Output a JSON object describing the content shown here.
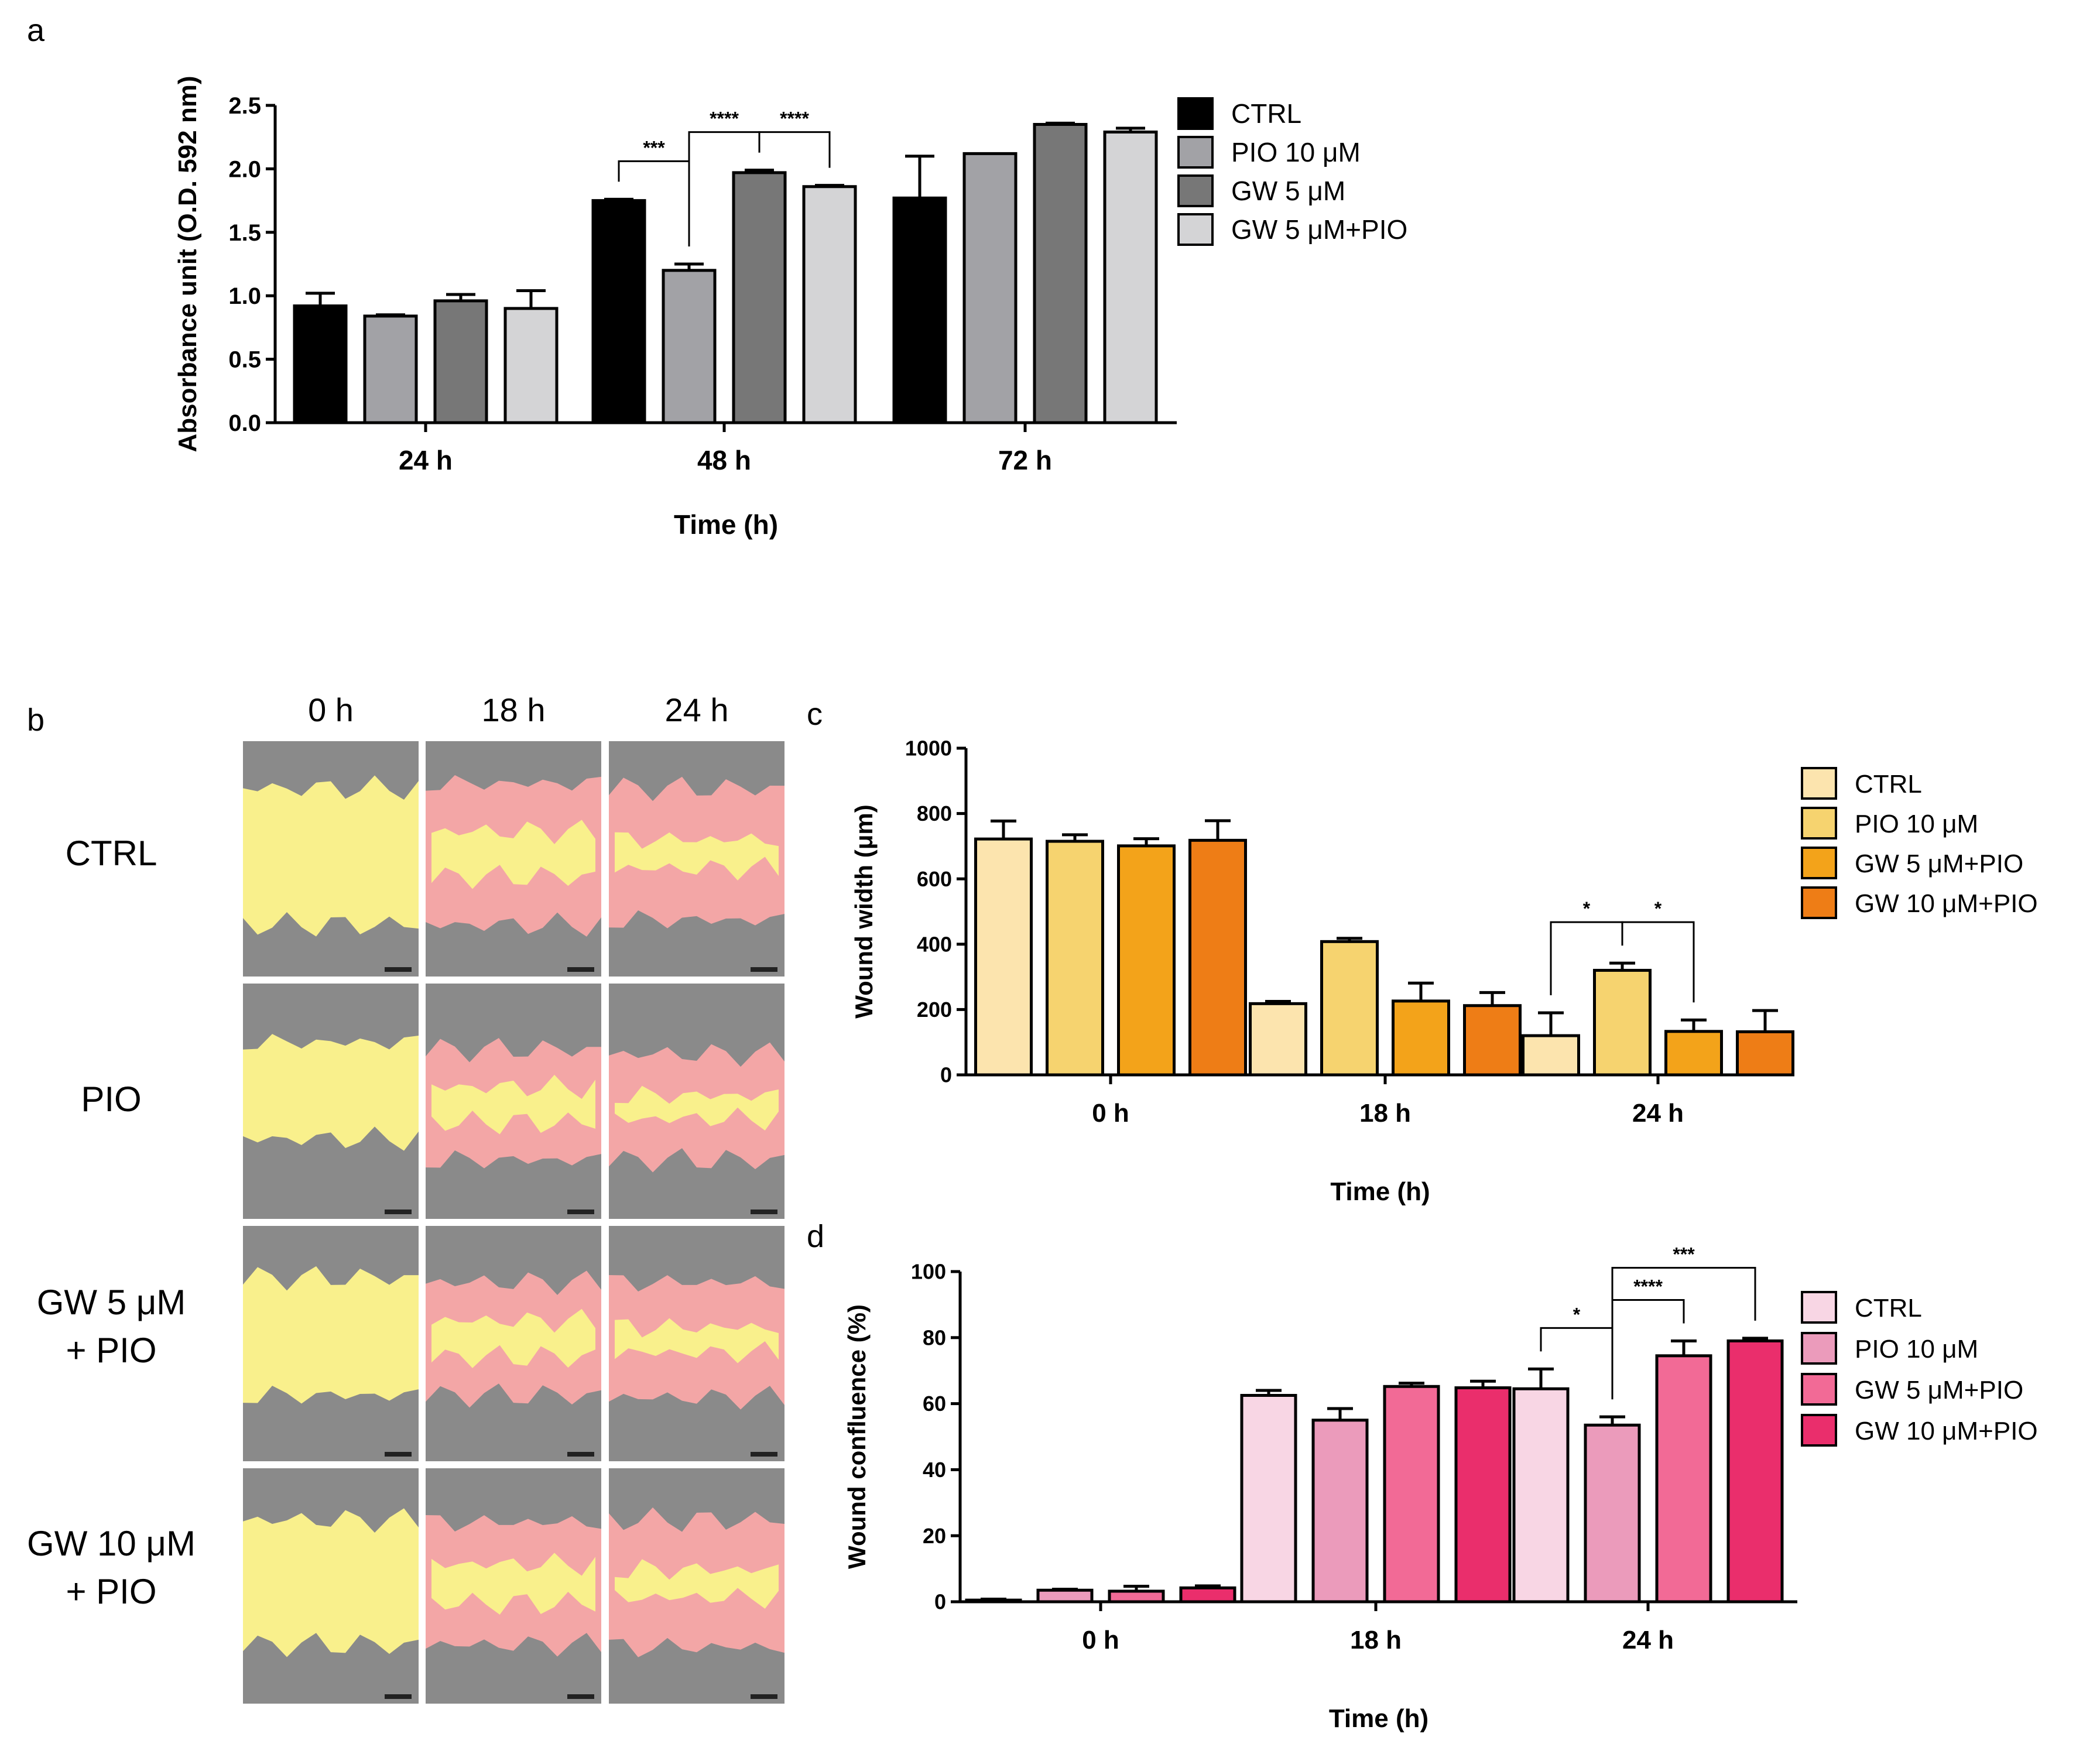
{
  "panel_labels": {
    "a": "a",
    "b": "b",
    "c": "c",
    "d": "d"
  },
  "chart_data": [
    {
      "id": "a",
      "type": "bar",
      "title": "",
      "xlabel": "Time (h)",
      "ylabel": "Absorbance unit (O.D. 592 nm)",
      "ylim": [
        0,
        2.5
      ],
      "yticks": [
        "0.0",
        "0.5",
        "1.0",
        "1.5",
        "2.0",
        "2.5"
      ],
      "categories": [
        "24 h",
        "48 h",
        "72 h"
      ],
      "series": [
        {
          "name": "CTRL",
          "color": "#000000",
          "values": [
            0.92,
            1.75,
            1.77
          ],
          "errors": [
            0.1,
            0.01,
            0.33
          ]
        },
        {
          "name": "PIO 10 μM",
          "color": "#a2a2a6",
          "values": [
            0.84,
            1.2,
            2.12
          ],
          "errors": [
            0.01,
            0.05,
            0.0
          ]
        },
        {
          "name": "GW 5 μM",
          "color": "#777777",
          "values": [
            0.96,
            1.97,
            2.35
          ],
          "errors": [
            0.05,
            0.02,
            0.01
          ]
        },
        {
          "name": "GW 5 μM+PIO",
          "color": "#d4d4d6",
          "values": [
            0.9,
            1.86,
            2.29
          ],
          "errors": [
            0.14,
            0.01,
            0.03
          ]
        }
      ],
      "legend": [
        "CTRL",
        "PIO 10 μM",
        "GW 5 μM",
        "GW 5 μM+PIO"
      ],
      "significance": [
        {
          "label": "***",
          "from": [
            1,
            0
          ],
          "to": [
            1,
            1
          ]
        },
        {
          "label": "****",
          "from": [
            1,
            1
          ],
          "to": [
            1,
            2
          ]
        },
        {
          "label": "****",
          "from": [
            1,
            2
          ],
          "to": [
            1,
            3
          ]
        }
      ]
    },
    {
      "id": "c",
      "type": "bar",
      "title": "",
      "xlabel": "Time (h)",
      "ylabel": "Wound width (μm)",
      "ylim": [
        0,
        1000
      ],
      "yticks": [
        "0",
        "200",
        "400",
        "600",
        "800",
        "1000"
      ],
      "categories": [
        "0 h",
        "18 h",
        "24 h"
      ],
      "series": [
        {
          "name": "CTRL",
          "color": "#fce4ae",
          "values": [
            722,
            218,
            120
          ],
          "errors": [
            55,
            7,
            70
          ]
        },
        {
          "name": "PIO 10 μM",
          "color": "#f6d36f",
          "values": [
            715,
            408,
            320
          ],
          "errors": [
            20,
            10,
            22
          ]
        },
        {
          "name": "GW 5 μM+PIO",
          "color": "#f3a31a",
          "values": [
            701,
            226,
            133
          ],
          "errors": [
            22,
            55,
            35
          ]
        },
        {
          "name": "GW 10 μM+PIO",
          "color": "#ee7d16",
          "values": [
            718,
            212,
            132
          ],
          "errors": [
            60,
            40,
            65
          ]
        }
      ],
      "legend": [
        "CTRL",
        "PIO 10 μM",
        "GW 5 μM+PIO",
        "GW 10 μM+PIO"
      ],
      "significance": [
        {
          "label": "*",
          "from": [
            2,
            0
          ],
          "to": [
            2,
            1
          ]
        },
        {
          "label": "*",
          "from": [
            2,
            1
          ],
          "to": [
            2,
            2
          ]
        }
      ]
    },
    {
      "id": "d",
      "type": "bar",
      "title": "",
      "xlabel": "Time (h)",
      "ylabel": "Wound confluence (%)",
      "ylim": [
        0,
        100
      ],
      "yticks": [
        "0",
        "20",
        "40",
        "60",
        "80",
        "100"
      ],
      "categories": [
        "0 h",
        "18 h",
        "24 h"
      ],
      "series": [
        {
          "name": "CTRL",
          "color": "#f8d6e4",
          "values": [
            0.5,
            62.5,
            64.5
          ],
          "errors": [
            0.3,
            1.5,
            6.0
          ]
        },
        {
          "name": "PIO 10 μM",
          "color": "#eb9bbb",
          "values": [
            3.5,
            55,
            53.5
          ],
          "errors": [
            0.3,
            3.5,
            2.5
          ]
        },
        {
          "name": "GW 5 μM+PIO",
          "color": "#f26a96",
          "values": [
            3.2,
            65.2,
            74.5
          ],
          "errors": [
            1.5,
            1.0,
            4.5
          ]
        },
        {
          "name": "GW 10 μM+PIO",
          "color": "#ea2e6c",
          "values": [
            4.2,
            64.8,
            79
          ],
          "errors": [
            0.6,
            2.0,
            0.8
          ]
        }
      ],
      "legend": [
        "CTRL",
        "PIO 10 μM",
        "GW 5 μM+PIO",
        "GW 10 μM+PIO"
      ],
      "significance": [
        {
          "label": "*",
          "from": [
            2,
            0
          ],
          "to": [
            2,
            1
          ]
        },
        {
          "label": "****",
          "from": [
            2,
            1
          ],
          "to": [
            2,
            2
          ]
        },
        {
          "label": "***",
          "from": [
            2,
            1
          ],
          "to": [
            2,
            3
          ]
        }
      ]
    }
  ],
  "micrographs": {
    "columns": [
      "0 h",
      "18 h",
      "24 h"
    ],
    "rows": [
      {
        "lines": [
          "CTRL"
        ]
      },
      {
        "lines": [
          "PIO"
        ]
      },
      {
        "lines": [
          "GW 5 μM",
          "+ PIO"
        ]
      },
      {
        "lines": [
          "GW 10 μM",
          "+ PIO"
        ]
      }
    ],
    "colors": {
      "background": "#8a8a8a",
      "wound_open": "#f9f08c",
      "wound_closed": "#f3a6a6"
    }
  }
}
